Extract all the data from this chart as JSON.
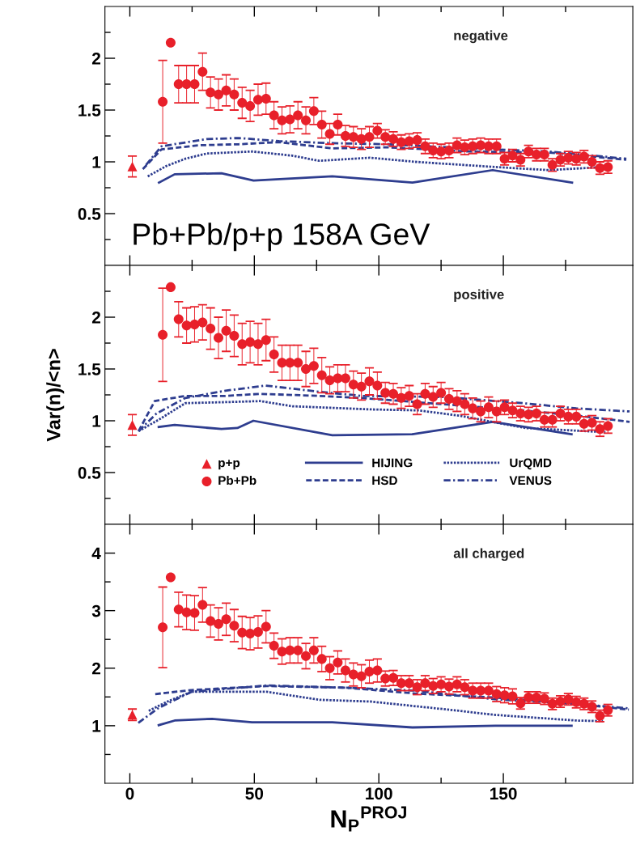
{
  "chart_data": [
    {
      "type": "line",
      "xlim": [
        -10,
        202
      ],
      "ylim": [
        0,
        2.5
      ],
      "xticks": [
        0,
        {
          "value": 25,
          "label": null
        },
        50,
        {
          "value": 75,
          "label": null
        },
        100,
        {
          "value": 125,
          "label": null
        },
        150,
        {
          "value": 175,
          "label": null
        }
      ],
      "yticks": [
        {
          "value": 0.25,
          "label": null
        },
        0.5,
        {
          "value": 0.75,
          "label": null
        },
        1,
        {
          "value": 1.25,
          "label": null
        },
        1.5,
        {
          "value": 1.75,
          "label": null
        },
        2,
        {
          "value": 2.25,
          "label": null
        }
      ],
      "tick_labels": "y",
      "grid": false,
      "legend": false,
      "annotations": [
        "negative",
        "Pb+Pb/p+p 158A GeV"
      ],
      "series": [
        {
          "type": "scatter",
          "marker": "triangle",
          "color": "#e8202a",
          "x": [
            1
          ],
          "values": [
            0.955
          ],
          "errors": [
            0.1
          ]
        },
        {
          "type": "scatter",
          "marker": "circle",
          "color": "#e8202a",
          "x": [
            13.2,
            16.4,
            19.6,
            22.8,
            26.0,
            29.2,
            32.4,
            35.6,
            38.7,
            41.9,
            45.1,
            48.3,
            51.5,
            54.7,
            57.9,
            61.1,
            64.3,
            67.5,
            70.7,
            73.9,
            77.1,
            80.3,
            83.5,
            86.6,
            89.8,
            93.0,
            96.2,
            99.4,
            102.6,
            105.8,
            109.0,
            112.2,
            115.4,
            118.6,
            121.8,
            125.0,
            128.2,
            131.4,
            134.5,
            137.7,
            140.9,
            144.1,
            147.3,
            150.5,
            153.7,
            156.9,
            160.1,
            163.3,
            166.5,
            169.7,
            172.9,
            176.1,
            179.3,
            182.4,
            185.6,
            188.8,
            192.0
          ],
          "values": [
            1.58,
            2.15,
            1.75,
            1.75,
            1.75,
            1.87,
            1.67,
            1.65,
            1.69,
            1.65,
            1.57,
            1.54,
            1.6,
            1.61,
            1.45,
            1.4,
            1.41,
            1.45,
            1.4,
            1.49,
            1.36,
            1.27,
            1.36,
            1.25,
            1.24,
            1.22,
            1.24,
            1.3,
            1.24,
            1.22,
            1.19,
            1.2,
            1.21,
            1.15,
            1.11,
            1.1,
            1.11,
            1.16,
            1.14,
            1.15,
            1.16,
            1.15,
            1.15,
            1.03,
            1.06,
            1.02,
            1.1,
            1.07,
            1.07,
            0.97,
            1.02,
            1.04,
            1.03,
            1.05,
            1.0,
            0.94,
            0.95
          ],
          "errors": [
            0.4,
            null,
            0.18,
            0.18,
            0.18,
            0.18,
            0.15,
            0.15,
            0.15,
            0.15,
            0.15,
            0.15,
            0.15,
            0.15,
            0.13,
            0.13,
            0.13,
            0.13,
            0.13,
            0.13,
            0.13,
            0.1,
            0.1,
            0.1,
            0.1,
            0.1,
            0.1,
            0.07,
            0.07,
            0.07,
            0.07,
            0.07,
            0.07,
            0.07,
            0.07,
            0.07,
            0.07,
            0.07,
            0.07,
            0.07,
            0.07,
            0.07,
            0.07,
            0.06,
            0.06,
            0.06,
            0.06,
            0.06,
            0.06,
            0.06,
            0.06,
            0.06,
            0.06,
            0.06,
            0.06,
            0.06,
            0.06
          ]
        },
        {
          "line_style": "solid",
          "color": "#2e3d8f",
          "x": [
            11.7,
            18.0,
            36.8,
            49.7,
            81.3,
            113.5,
            145.7,
            177.6
          ],
          "values": [
            0.8,
            0.88,
            0.89,
            0.82,
            0.86,
            0.8,
            0.92,
            0.8
          ]
        },
        {
          "line_style": "dashed",
          "color": "#2e3d8f",
          "x": [
            5.2,
            12.7,
            27.7,
            43.8,
            59.9,
            81.3,
            103.9,
            136.1,
            168.3,
            199.4
          ],
          "values": [
            0.93,
            1.12,
            1.16,
            1.17,
            1.19,
            1.13,
            1.14,
            1.1,
            1.09,
            1.02
          ]
        },
        {
          "line_style": "dotted",
          "color": "#2e3d8f",
          "x": [
            7.2,
            14.7,
            22.3,
            30.8,
            49.1,
            65.2,
            76.0,
            96.4,
            114.7,
            146.9,
            168.3,
            189.8
          ],
          "values": [
            0.86,
            0.96,
            1.03,
            1.08,
            1.1,
            1.06,
            1.01,
            1.04,
            1.0,
            0.95,
            0.92,
            0.95
          ]
        },
        {
          "line_style": "dashdot",
          "color": "#2e3d8f",
          "x": [
            6.5,
            12.7,
            30.8,
            43.8,
            59.9,
            81.3,
            103.9,
            136.1,
            168.3,
            199.4
          ],
          "values": [
            0.97,
            1.15,
            1.22,
            1.23,
            1.2,
            1.18,
            1.17,
            1.13,
            1.1,
            1.03
          ]
        }
      ]
    },
    {
      "type": "line",
      "ylabel": "Var(n)/<n>",
      "xlim": [
        -10,
        202
      ],
      "ylim": [
        0,
        2.5
      ],
      "xticks": [
        0,
        {
          "value": 25,
          "label": null
        },
        50,
        {
          "value": 75,
          "label": null
        },
        100,
        {
          "value": 125,
          "label": null
        },
        150,
        {
          "value": 175,
          "label": null
        }
      ],
      "yticks": [
        {
          "value": 0.25,
          "label": null
        },
        0.5,
        {
          "value": 0.75,
          "label": null
        },
        1,
        {
          "value": 1.25,
          "label": null
        },
        1.5,
        {
          "value": 1.75,
          "label": null
        },
        2,
        {
          "value": 2.25,
          "label": null
        }
      ],
      "tick_labels": "y",
      "grid": false,
      "legend": "bottom",
      "annotations": [
        "positive"
      ],
      "series": [
        {
          "type": "scatter",
          "name": "p+p",
          "marker": "triangle",
          "color": "#e8202a",
          "x": [
            1
          ],
          "values": [
            0.96
          ],
          "errors": [
            0.1
          ]
        },
        {
          "type": "scatter",
          "name": "Pb+Pb",
          "marker": "circle",
          "color": "#e8202a",
          "x": [
            13.2,
            16.4,
            19.6,
            22.8,
            26.0,
            29.2,
            32.4,
            35.6,
            38.7,
            41.9,
            45.1,
            48.3,
            51.5,
            54.7,
            57.9,
            61.1,
            64.3,
            67.5,
            70.7,
            73.9,
            77.1,
            80.3,
            83.5,
            86.6,
            89.8,
            93.0,
            96.2,
            99.4,
            102.6,
            105.8,
            109.0,
            112.2,
            115.4,
            118.6,
            121.8,
            125.0,
            128.2,
            131.4,
            134.5,
            137.7,
            140.9,
            144.1,
            147.3,
            150.5,
            153.7,
            156.9,
            160.1,
            163.3,
            166.5,
            169.7,
            172.9,
            176.1,
            179.3,
            182.4,
            185.6,
            188.8,
            192.0
          ],
          "values": [
            1.83,
            2.29,
            1.98,
            1.92,
            1.93,
            1.95,
            1.89,
            1.8,
            1.87,
            1.82,
            1.74,
            1.76,
            1.74,
            1.78,
            1.64,
            1.56,
            1.56,
            1.56,
            1.5,
            1.53,
            1.44,
            1.39,
            1.41,
            1.41,
            1.35,
            1.33,
            1.38,
            1.34,
            1.27,
            1.26,
            1.22,
            1.24,
            1.16,
            1.26,
            1.23,
            1.27,
            1.21,
            1.19,
            1.16,
            1.12,
            1.09,
            1.13,
            1.09,
            1.13,
            1.1,
            1.07,
            1.06,
            1.07,
            1.01,
            1.01,
            1.07,
            1.04,
            1.04,
            0.97,
            0.98,
            0.92,
            0.95
          ],
          "errors": [
            0.45,
            null,
            0.17,
            0.17,
            0.17,
            0.17,
            0.2,
            0.2,
            0.2,
            0.2,
            0.2,
            0.2,
            0.2,
            0.2,
            0.17,
            0.17,
            0.17,
            0.17,
            0.17,
            0.17,
            0.17,
            0.13,
            0.13,
            0.13,
            0.13,
            0.13,
            0.13,
            0.13,
            0.1,
            0.1,
            0.1,
            0.1,
            0.1,
            0.1,
            0.1,
            0.1,
            0.1,
            0.1,
            0.1,
            0.1,
            0.1,
            0.1,
            0.1,
            0.07,
            0.07,
            0.07,
            0.07,
            0.07,
            0.07,
            0.07,
            0.07,
            0.07,
            0.07,
            0.07,
            0.07,
            0.07,
            0.07
          ]
        },
        {
          "name": "HIJING",
          "line_style": "solid",
          "color": "#2e3d8f",
          "x": [
            11.6,
            18.0,
            36.8,
            43.2,
            49.6,
            81.3,
            113.5,
            145.7,
            177.4
          ],
          "values": [
            0.94,
            0.96,
            0.92,
            0.93,
            1.0,
            0.86,
            0.87,
            0.99,
            0.87
          ]
        },
        {
          "name": "HSD",
          "line_style": "dashed",
          "color": "#2e3d8f",
          "x": [
            3.5,
            10.0,
            22.3,
            38.4,
            52.4,
            76.0,
            93.4,
            125.6,
            157.8,
            179.3,
            200.7
          ],
          "values": [
            0.9,
            1.19,
            1.24,
            1.24,
            1.26,
            1.24,
            1.22,
            1.16,
            1.1,
            1.05,
            0.99
          ]
        },
        {
          "name": "UrQMD",
          "line_style": "dotted",
          "color": "#2e3d8f",
          "x": [
            3.5,
            11.6,
            22.3,
            38.4,
            52.4,
            65.3,
            96.4,
            116.0,
            132.1,
            159.0,
            191.0
          ],
          "values": [
            0.9,
            1.01,
            1.17,
            1.18,
            1.19,
            1.14,
            1.11,
            1.1,
            1.05,
            0.93,
            0.89
          ]
        },
        {
          "name": "VENUS",
          "line_style": "dashdot",
          "color": "#2e3d8f",
          "x": [
            3.5,
            10.7,
            22.3,
            38.4,
            54.5,
            76.0,
            93.4,
            125.6,
            157.8,
            179.3,
            200.7
          ],
          "values": [
            0.9,
            1.07,
            1.22,
            1.29,
            1.34,
            1.28,
            1.24,
            1.23,
            1.17,
            1.12,
            1.09
          ]
        }
      ]
    },
    {
      "type": "line",
      "xlabel": "N$_{P}$$^{PROJ}$",
      "xlim": [
        -10,
        202
      ],
      "ylim": [
        0,
        4.5
      ],
      "xticks": [
        0,
        {
          "value": 25,
          "label": null
        },
        50,
        {
          "value": 75,
          "label": null
        },
        100,
        {
          "value": 125,
          "label": null
        },
        150,
        {
          "value": 175,
          "label": null
        }
      ],
      "yticks": [
        {
          "value": 0.5,
          "label": null
        },
        1,
        {
          "value": 1.5,
          "label": null
        },
        2,
        {
          "value": 2.5,
          "label": null
        },
        3,
        {
          "value": 3.5,
          "label": null
        },
        4
      ],
      "grid": false,
      "legend": false,
      "annotations": [
        "all charged"
      ],
      "series": [
        {
          "type": "scatter",
          "marker": "triangle",
          "color": "#e8202a",
          "x": [
            1
          ],
          "values": [
            1.19
          ],
          "errors": [
            0.1
          ]
        },
        {
          "type": "scatter",
          "marker": "circle",
          "color": "#e8202a",
          "x": [
            13.2,
            16.4,
            19.6,
            22.8,
            26.0,
            29.2,
            32.4,
            35.6,
            38.7,
            41.9,
            45.1,
            48.3,
            51.5,
            54.7,
            57.9,
            61.1,
            64.3,
            67.5,
            70.7,
            73.9,
            77.1,
            80.3,
            83.5,
            86.6,
            89.8,
            93.0,
            96.2,
            99.4,
            102.6,
            105.8,
            109.0,
            112.2,
            115.4,
            118.6,
            121.8,
            125.0,
            128.2,
            131.4,
            134.5,
            137.7,
            140.9,
            144.1,
            147.3,
            150.5,
            153.7,
            156.9,
            160.1,
            163.3,
            166.5,
            169.7,
            172.9,
            176.1,
            179.3,
            182.4,
            185.6,
            188.8,
            192.0
          ],
          "values": [
            2.71,
            3.58,
            3.02,
            2.97,
            2.96,
            3.1,
            2.82,
            2.77,
            2.85,
            2.74,
            2.62,
            2.6,
            2.63,
            2.72,
            2.39,
            2.29,
            2.31,
            2.31,
            2.21,
            2.31,
            2.16,
            2.0,
            2.1,
            1.96,
            1.89,
            1.86,
            1.94,
            1.96,
            1.82,
            1.83,
            1.74,
            1.74,
            1.67,
            1.74,
            1.69,
            1.72,
            1.68,
            1.72,
            1.67,
            1.61,
            1.61,
            1.61,
            1.55,
            1.53,
            1.51,
            1.39,
            1.49,
            1.49,
            1.47,
            1.38,
            1.42,
            1.46,
            1.41,
            1.38,
            1.33,
            1.17,
            1.27
          ],
          "errors": [
            0.7,
            null,
            0.3,
            0.3,
            0.3,
            0.3,
            0.28,
            0.28,
            0.28,
            0.28,
            0.28,
            0.28,
            0.28,
            0.28,
            0.22,
            0.22,
            0.22,
            0.22,
            0.22,
            0.22,
            0.22,
            0.2,
            0.2,
            0.2,
            0.2,
            0.2,
            0.2,
            0.2,
            0.13,
            0.13,
            0.13,
            0.13,
            0.13,
            0.13,
            0.13,
            0.13,
            0.13,
            0.13,
            0.13,
            0.13,
            0.13,
            0.13,
            0.13,
            0.13,
            0.13,
            0.1,
            0.1,
            0.1,
            0.1,
            0.1,
            0.1,
            0.1,
            0.1,
            0.1,
            0.1,
            0.1,
            0.1
          ]
        },
        {
          "line_style": "solid",
          "color": "#2e3d8f",
          "x": [
            11.6,
            18.0,
            33.0,
            49.1,
            81.3,
            113.5,
            146.8,
            177.4
          ],
          "values": [
            1.01,
            1.09,
            1.12,
            1.06,
            1.06,
            0.97,
            1.0,
            1.0
          ]
        },
        {
          "line_style": "dashed",
          "color": "#2e3d8f",
          "x": [
            10.2,
            24.8,
            54.9,
            87.1,
            114.6,
            146.8,
            179.0,
            200.4
          ],
          "values": [
            1.55,
            1.62,
            1.69,
            1.66,
            1.56,
            1.49,
            1.38,
            1.28
          ]
        },
        {
          "line_style": "dotted",
          "color": "#2e3d8f",
          "x": [
            7.6,
            15.1,
            24.8,
            54.9,
            76.3,
            96.7,
            127.9,
            146.1,
            179.3,
            190.0
          ],
          "values": [
            1.26,
            1.42,
            1.59,
            1.59,
            1.45,
            1.42,
            1.28,
            1.19,
            1.09,
            1.08
          ]
        },
        {
          "line_style": "dashdot",
          "color": "#2e3d8f",
          "x": [
            3.4,
            11.6,
            24.8,
            54.9,
            87.1,
            114.6,
            146.8,
            179.0,
            200.4
          ],
          "values": [
            1.05,
            1.31,
            1.59,
            1.7,
            1.66,
            1.61,
            1.46,
            1.38,
            1.3
          ]
        }
      ]
    }
  ]
}
